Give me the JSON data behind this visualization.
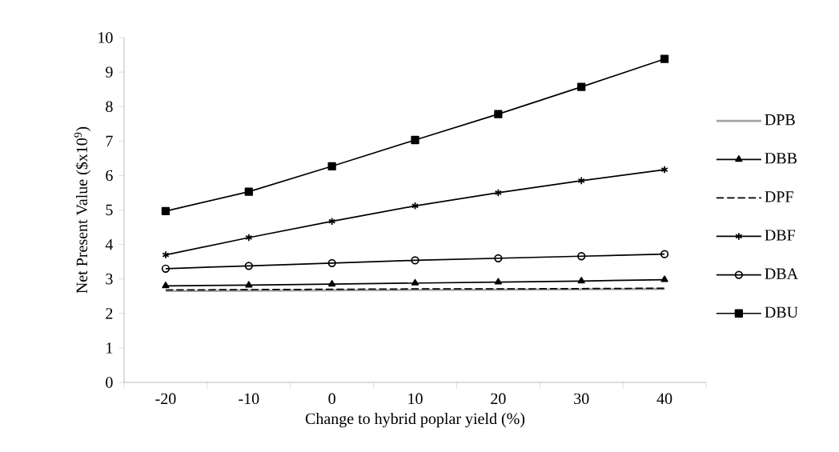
{
  "chart_data": {
    "type": "line",
    "xlabel": "Change to hybrid poplar yield (%)",
    "ylabel": "Net Present Value ($x10$^{9}$)",
    "categories": [
      "-20",
      "-10",
      "0",
      "10",
      "20",
      "30",
      "40"
    ],
    "ylim": [
      0,
      10
    ],
    "yticks": [
      0,
      1,
      2,
      3,
      4,
      5,
      6,
      7,
      8,
      9,
      10
    ],
    "legend": "right",
    "series": [
      {
        "name": "DPB",
        "color": "#a6a6a6",
        "marker": "none",
        "line_style": "solid",
        "values": [
          2.65,
          2.66,
          2.67,
          2.68,
          2.69,
          2.7,
          2.71
        ]
      },
      {
        "name": "DBB",
        "color": "#000000",
        "marker": "triangle",
        "line_style": "solid",
        "values": [
          2.8,
          2.82,
          2.85,
          2.88,
          2.91,
          2.94,
          2.98
        ]
      },
      {
        "name": "DPF",
        "color": "#000000",
        "marker": "none",
        "line_style": "dashed",
        "values": [
          2.68,
          2.69,
          2.7,
          2.71,
          2.71,
          2.72,
          2.73
        ]
      },
      {
        "name": "DBF",
        "color": "#000000",
        "marker": "cross",
        "line_style": "solid",
        "values": [
          3.7,
          4.2,
          4.67,
          5.12,
          5.5,
          5.85,
          6.17
        ]
      },
      {
        "name": "DBA",
        "color": "#000000",
        "marker": "circle",
        "line_style": "solid",
        "values": [
          3.3,
          3.38,
          3.46,
          3.54,
          3.6,
          3.66,
          3.72
        ]
      },
      {
        "name": "DBU",
        "color": "#000000",
        "marker": "square",
        "line_style": "solid",
        "values": [
          4.97,
          5.53,
          6.27,
          7.03,
          7.78,
          8.57,
          9.38
        ]
      }
    ]
  }
}
